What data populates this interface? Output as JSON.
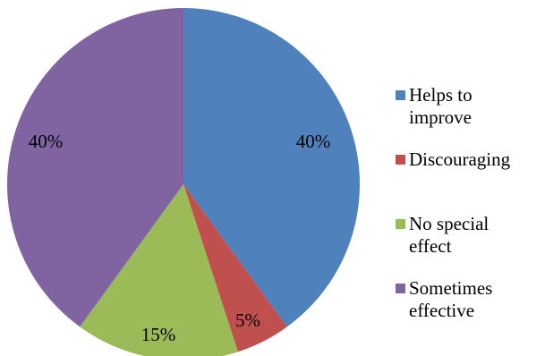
{
  "chart_data": {
    "type": "pie",
    "title": "",
    "legend_position": "right",
    "slices": [
      {
        "label": "Helps to improve",
        "value": 40,
        "display": "40%",
        "color": "#4F81BD"
      },
      {
        "label": "Discouraging",
        "value": 5,
        "display": "5%",
        "color": "#C0504D"
      },
      {
        "label": "No special effect",
        "value": 15,
        "display": "15%",
        "color": "#9BBB59"
      },
      {
        "label": "Sometimes effective",
        "value": 40,
        "display": "40%",
        "color": "#8064A2"
      }
    ]
  }
}
